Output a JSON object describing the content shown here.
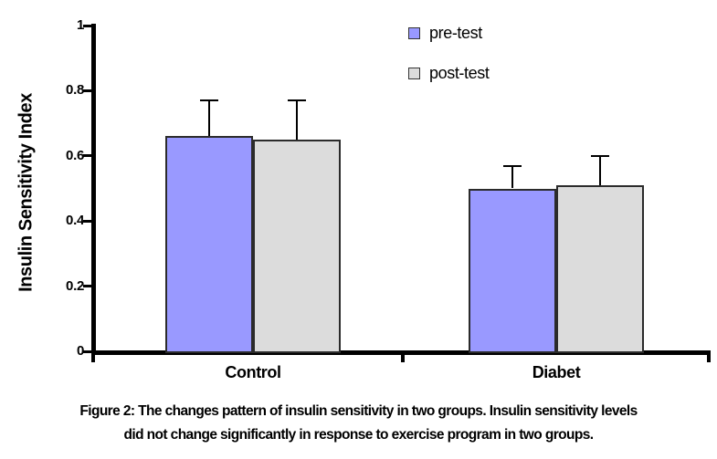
{
  "figure": {
    "caption_line1": "Figure 2: The changes pattern of insulin sensitivity in two groups. Insulin sensitivity levels",
    "caption_line2": "did not change significantly in response to exercise program in two groups."
  },
  "chart_data": {
    "type": "bar",
    "title": "",
    "categories": [
      "Control",
      "Diabet"
    ],
    "series": [
      {
        "name": "pre-test",
        "color": "#9999FF",
        "values": [
          0.66,
          0.5
        ],
        "errors": [
          0.11,
          0.07
        ]
      },
      {
        "name": "post-test",
        "color": "#DCDCDC",
        "values": [
          0.65,
          0.51
        ],
        "errors": [
          0.12,
          0.09
        ]
      }
    ],
    "xlabel": "",
    "ylabel": "Insulin Sensitivity Index",
    "ylim": [
      0,
      1
    ],
    "yticks": [
      0,
      0.2,
      0.4,
      0.6,
      0.8,
      1
    ],
    "grid": false,
    "error_bars": true,
    "legend_position": "top-center",
    "bar_border_color": "#2b2b2b",
    "axis_color": "#000000"
  }
}
